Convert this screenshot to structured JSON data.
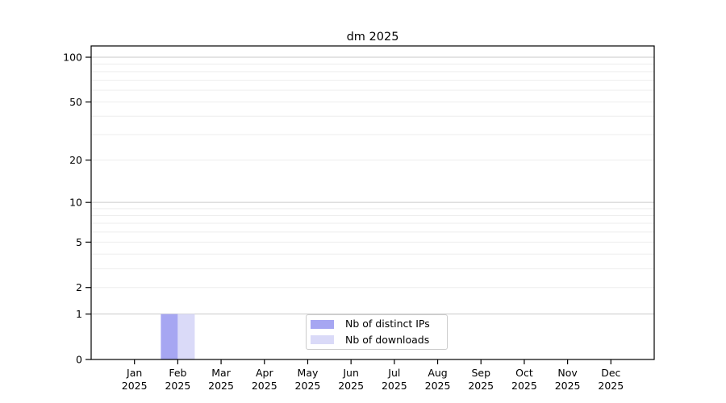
{
  "figure": {
    "title": "dm 2025"
  },
  "chart_data": {
    "type": "bar",
    "title": "dm 2025",
    "categories": [
      "Jan",
      "Feb",
      "Mar",
      "Apr",
      "May",
      "Jun",
      "Jul",
      "Aug",
      "Sep",
      "Oct",
      "Nov",
      "Dec"
    ],
    "category_year": "2025",
    "series": [
      {
        "name": "Nb of distinct IPs",
        "color": "#a6a6f2",
        "values": [
          0,
          1,
          0,
          0,
          0,
          0,
          0,
          0,
          0,
          0,
          0,
          0
        ]
      },
      {
        "name": "Nb of downloads",
        "color": "#dadaf8",
        "values": [
          0,
          1,
          0,
          0,
          0,
          0,
          0,
          0,
          0,
          0,
          0,
          0
        ]
      }
    ],
    "y_scale": "log10(1+y)",
    "ylim": [
      0,
      119
    ],
    "y_ticks": [
      100,
      50,
      20,
      10,
      5,
      2,
      1,
      0
    ],
    "y_major_gridlines": [
      1,
      10,
      100
    ],
    "y_minor_gridlines": [
      2,
      3,
      4,
      5,
      6,
      7,
      8,
      9,
      20,
      30,
      40,
      50,
      60,
      70,
      80,
      90
    ],
    "xlabel": "",
    "ylabel": "",
    "legend_position": "lower center",
    "colors": {
      "axis": "#000000",
      "major_grid": "#c9c9c9",
      "minor_grid": "#ededed",
      "background": "#ffffff"
    }
  }
}
